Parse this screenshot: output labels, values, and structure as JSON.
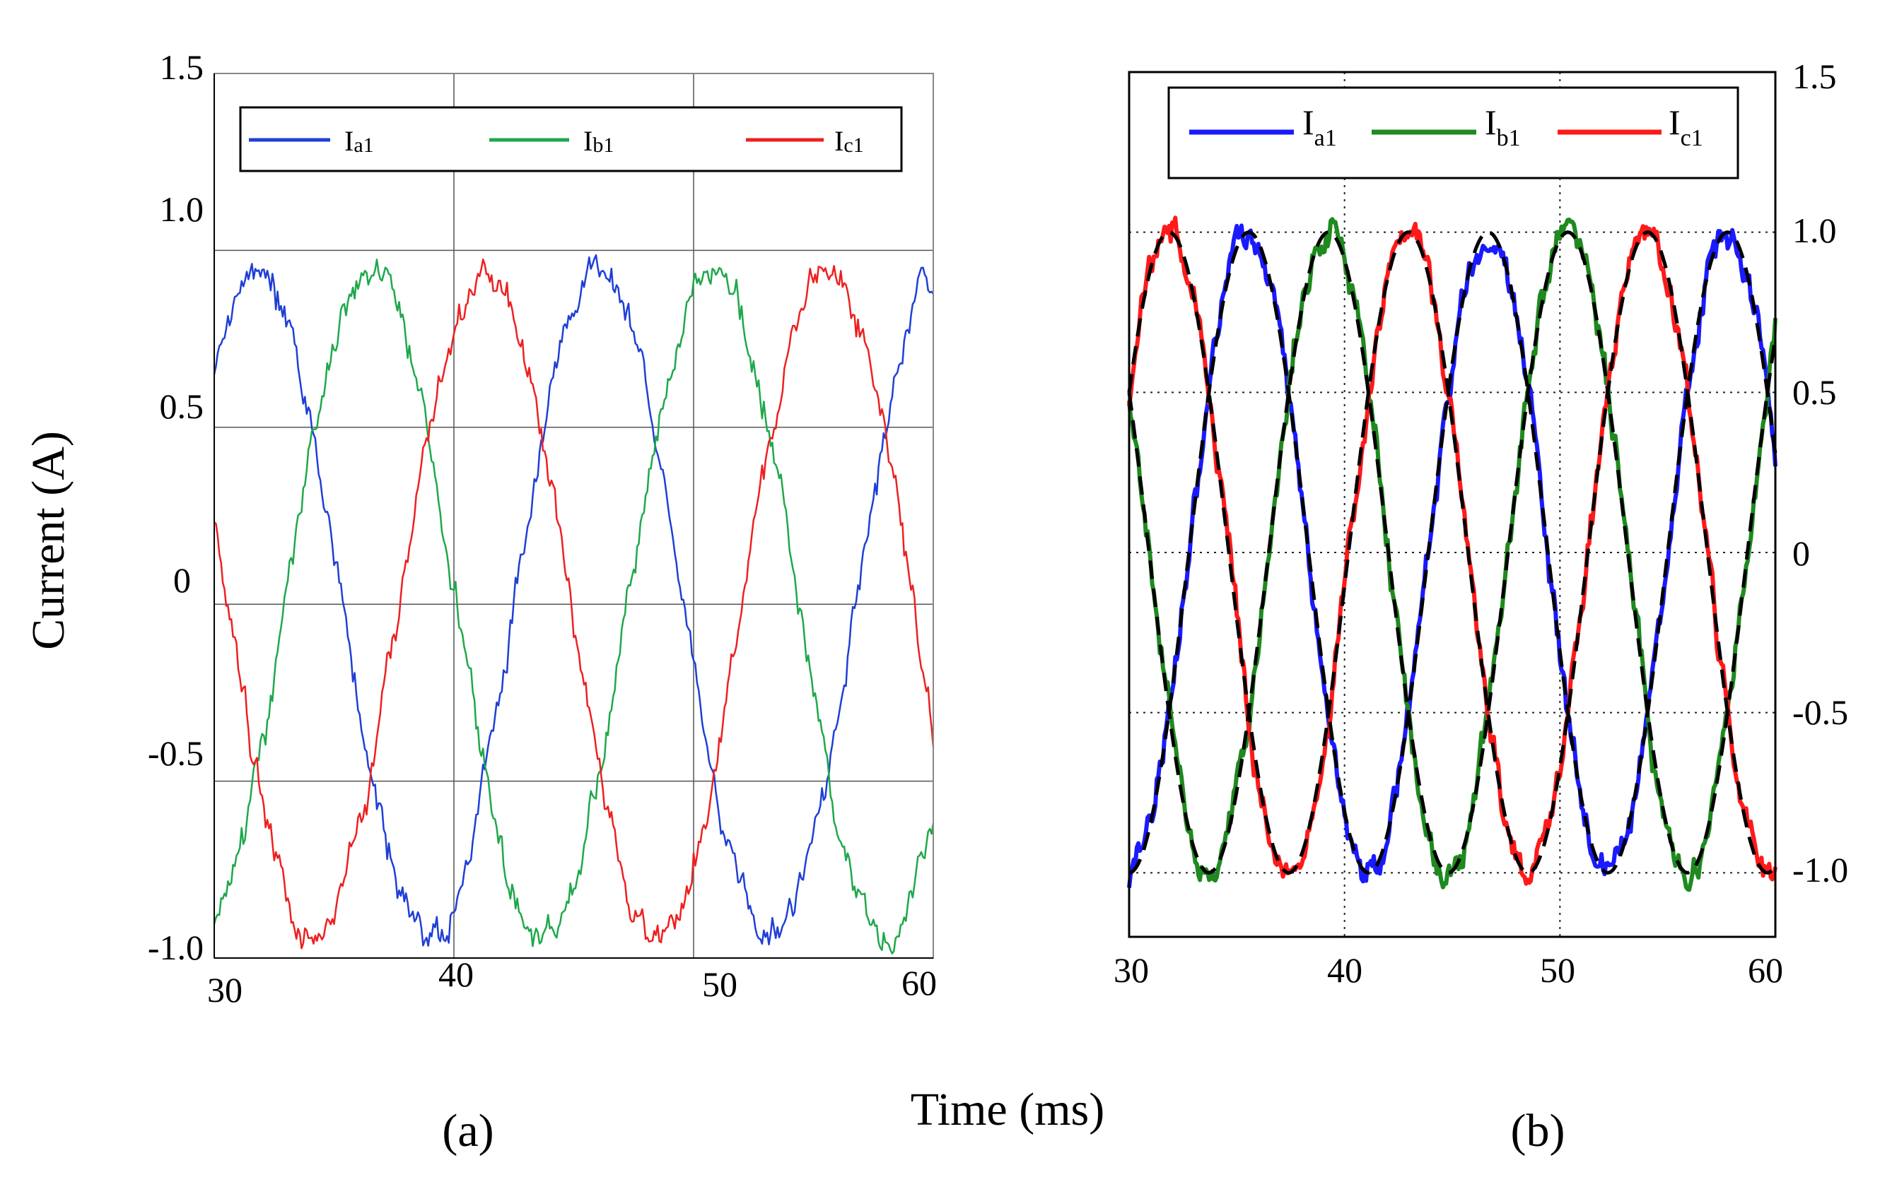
{
  "figure": {
    "shared_ylabel": "Current (A)",
    "shared_xlabel": "Time (ms)"
  },
  "chart_data": [
    {
      "id": "a",
      "type": "line",
      "panel_label": "(a)",
      "xlabel": "Time (ms)",
      "ylabel": "Current (A)",
      "xlim": [
        30,
        60
      ],
      "ylim": [
        -1.0,
        1.5
      ],
      "xticks": [
        "30",
        "40",
        "50",
        "60"
      ],
      "yticks": [
        "1.5",
        "1.0",
        "0.5",
        "0",
        "-0.5",
        "-1.0"
      ],
      "xtick_values": [
        30,
        40,
        50,
        60
      ],
      "ytick_values": [
        1.5,
        1.0,
        0.5,
        0,
        -0.5,
        -1.0
      ],
      "y_axis_side": "left",
      "grid": "solid",
      "legend_position": "top",
      "frequency_hz": 70,
      "period_ms": 14.3,
      "amplitude": 0.94,
      "noise_level": 0.028,
      "series": [
        {
          "name": "I",
          "sub": "a1",
          "color": "#1f3fd6",
          "phase_deg": 45
        },
        {
          "name": "I",
          "sub": "b1",
          "color": "#1fa84b",
          "phase_deg": -75
        },
        {
          "name": "I",
          "sub": "c1",
          "color": "#ee2020",
          "phase_deg": 165
        }
      ]
    },
    {
      "id": "b",
      "type": "line",
      "panel_label": "(b)",
      "xlabel": "Time (ms)",
      "ylabel": "Current (A)",
      "xlim": [
        30,
        60
      ],
      "ylim": [
        -1.2,
        1.5
      ],
      "xticks": [
        "30",
        "40",
        "50",
        "60"
      ],
      "yticks": [
        "1.5",
        "1.0",
        "0.5",
        "0",
        "-0.5",
        "-1.0"
      ],
      "xtick_values": [
        30,
        40,
        50,
        60
      ],
      "ytick_values": [
        1.5,
        1.0,
        0.5,
        0,
        -0.5,
        -1.0
      ],
      "y_axis_side": "right",
      "grid": "dotted",
      "legend_position": "top",
      "frequency_hz": 90,
      "period_ms": 11.1,
      "amplitude": 1.0,
      "noise_level": 0.03,
      "reference": {
        "style": "dashed",
        "color": "#000000",
        "description": "ideal sinusoidal references"
      },
      "series": [
        {
          "name": "I",
          "sub": "a1",
          "color": "#1a1aff",
          "phase_deg": -90
        },
        {
          "name": "I",
          "sub": "b1",
          "color": "#1f8a1f",
          "phase_deg": -210
        },
        {
          "name": "I",
          "sub": "c1",
          "color": "#ff1a1a",
          "phase_deg": 30
        }
      ]
    }
  ]
}
